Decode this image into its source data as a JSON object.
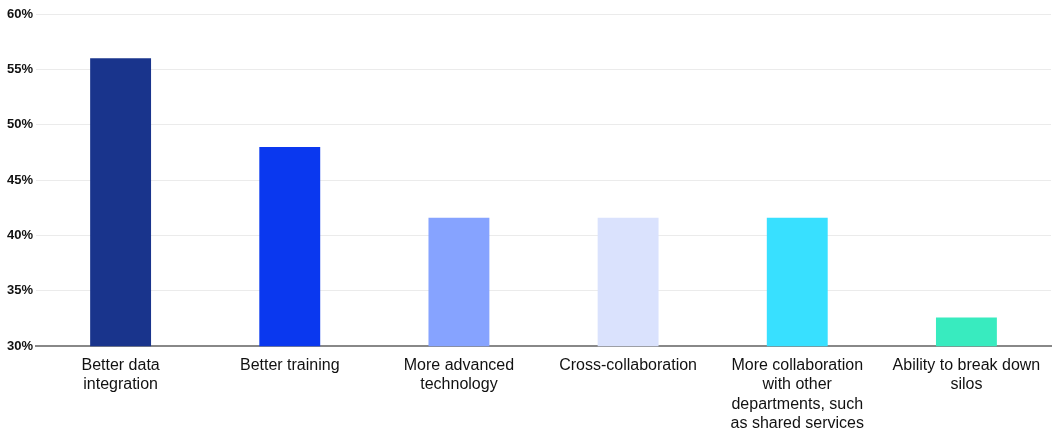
{
  "chart_data": {
    "type": "bar",
    "categories": [
      "Better data integration",
      "Better training",
      "More advanced technology",
      "Cross-collaboration",
      "More collaboration with other departments, such as shared services",
      "Ability to break down silos"
    ],
    "values": [
      56,
      48,
      41.6,
      41.6,
      41.6,
      32.6
    ],
    "colors": [
      "#19348c",
      "#0a38ef",
      "#86a3ff",
      "#dae2fd",
      "#38e0ff",
      "#38ebbf"
    ],
    "ylim": [
      30,
      60
    ],
    "yticks": [
      {
        "value": 30,
        "label": "30%"
      },
      {
        "value": 35,
        "label": "35%"
      },
      {
        "value": 40,
        "label": "40%"
      },
      {
        "value": 45,
        "label": "45%"
      },
      {
        "value": 50,
        "label": "50%"
      },
      {
        "value": 55,
        "label": "55%"
      },
      {
        "value": 60,
        "label": "60%"
      }
    ],
    "grid": "y",
    "legend": false
  }
}
